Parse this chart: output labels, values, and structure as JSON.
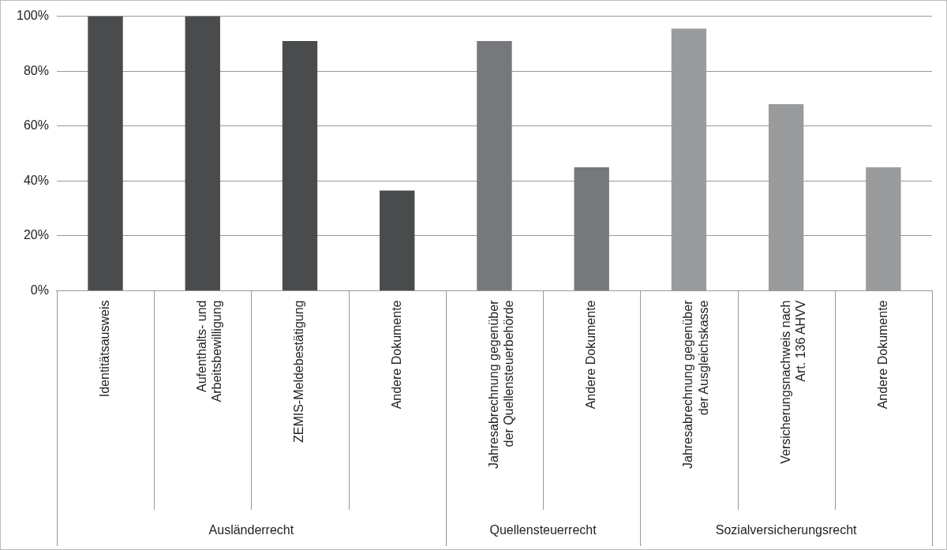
{
  "chart_data": {
    "type": "bar",
    "categories": [
      "Identitätsausweis",
      "Aufenthalts- und Arbeitsbewilligung",
      "ZEMIS-Meldebestätigung",
      "Andere Dokumente",
      "Jahresabrechnung gegenüber der Quellensteuerbehörde",
      "Andere Dokumente",
      "Jahresabrechnung gegenüber der Ausgleichskasse",
      "Versicherungsnachweis nach Art. 136 AHVV",
      "Andere Dokumente"
    ],
    "values": [
      100,
      100,
      91,
      36.5,
      91,
      45,
      95.5,
      68,
      45
    ],
    "colors": [
      "#4a4b4d",
      "#4a4b4d",
      "#4a4b4d",
      "#4a4b4d",
      "#77787b",
      "#77787b",
      "#9a9b9d",
      "#9a9b9d",
      "#9a9b9d"
    ],
    "ylim": [
      0,
      100
    ],
    "yticks": [
      {
        "value": 0,
        "label": "0%"
      },
      {
        "value": 20,
        "label": "20%"
      },
      {
        "value": 40,
        "label": "40%"
      },
      {
        "value": 60,
        "label": "60%"
      },
      {
        "value": 80,
        "label": "80%"
      },
      {
        "value": 100,
        "label": "100%"
      }
    ],
    "grid": "y",
    "legend": false,
    "annotations": [
      "Ausländerrecht",
      "Quellensteuerrecht",
      "Sozialversicherungsrecht"
    ]
  }
}
